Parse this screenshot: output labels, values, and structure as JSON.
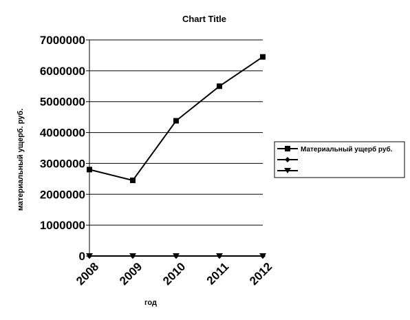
{
  "chart_data": {
    "type": "line",
    "title": "Chart Title",
    "xlabel": "год",
    "ylabel": "материальный ущерб. руб.",
    "categories": [
      "2008",
      "2009",
      "2010",
      "2011",
      "2012"
    ],
    "ylim": [
      0,
      7000000
    ],
    "yticks": [
      "0",
      "1000000",
      "2000000",
      "3000000",
      "4000000",
      "5000000",
      "6000000",
      "7000000"
    ],
    "grid": true,
    "legend_position": "right",
    "series": [
      {
        "name": "Материальный ущерб руб.",
        "marker": "square",
        "values": [
          2800000,
          2450000,
          4380000,
          5500000,
          6450000
        ]
      },
      {
        "name": "",
        "marker": "diamond",
        "values": [
          0,
          0,
          0,
          0,
          0
        ]
      },
      {
        "name": "",
        "marker": "triangle-down",
        "values": [
          0,
          0,
          0,
          0,
          0
        ]
      }
    ],
    "colors": {
      "line": "#000000",
      "grid": "#000000",
      "background": "#ffffff"
    }
  }
}
